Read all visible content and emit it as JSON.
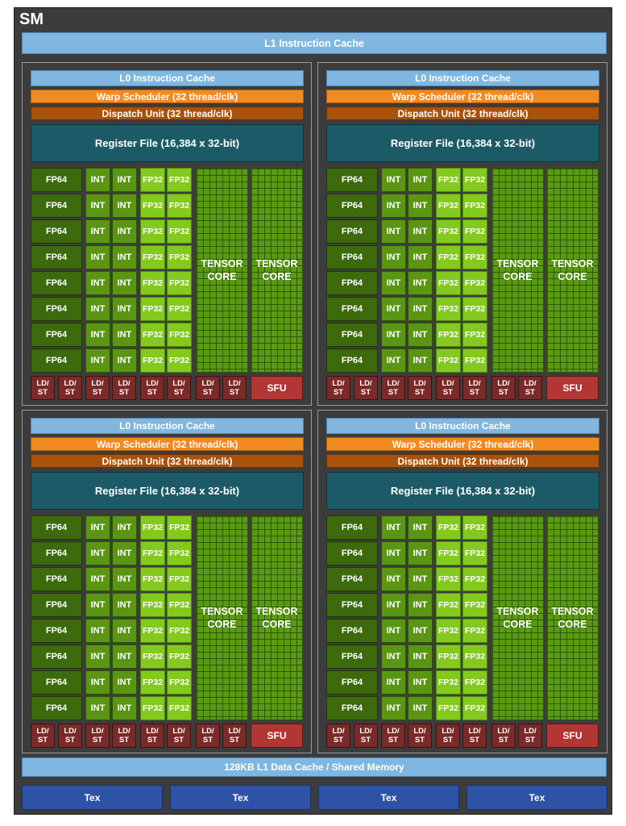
{
  "sm_title": "SM",
  "l1_instruction_cache": "L1 Instruction Cache",
  "processing_block": {
    "l0_cache": "L0 Instruction Cache",
    "warp_scheduler": "Warp Scheduler (32 thread/clk)",
    "dispatch_unit": "Dispatch Unit (32 thread/clk)",
    "register_file": "Register File (16,384 x 32-bit)",
    "fp64_label": "FP64",
    "int_label": "INT",
    "fp32_label": "FP32",
    "tensor_core_label": "TENSOR\nCORE",
    "ldst_label": "LD/\nST",
    "sfu_label": "SFU",
    "fp64_units": 8,
    "int_units": 16,
    "fp32_units": 16,
    "tensor_cores": 2,
    "ldst_units": 8,
    "sfu_units": 1
  },
  "processing_block_count": 4,
  "l1_data_cache": "128KB L1 Data Cache / Shared Memory",
  "tex_units": [
    "Tex",
    "Tex",
    "Tex",
    "Tex"
  ],
  "colors": {
    "background": "#3c3c3c",
    "cache": "#7fb7e0",
    "warp_scheduler": "#f18a21",
    "dispatch_unit": "#a9520a",
    "register_file": "#1d5a68",
    "fp64": "#3d6a0d",
    "int": "#5a9612",
    "fp32": "#84c91d",
    "tensor_core": "#5a9a12",
    "ldst": "#7a2a28",
    "sfu": "#b23633",
    "tex": "#2e52a6"
  }
}
